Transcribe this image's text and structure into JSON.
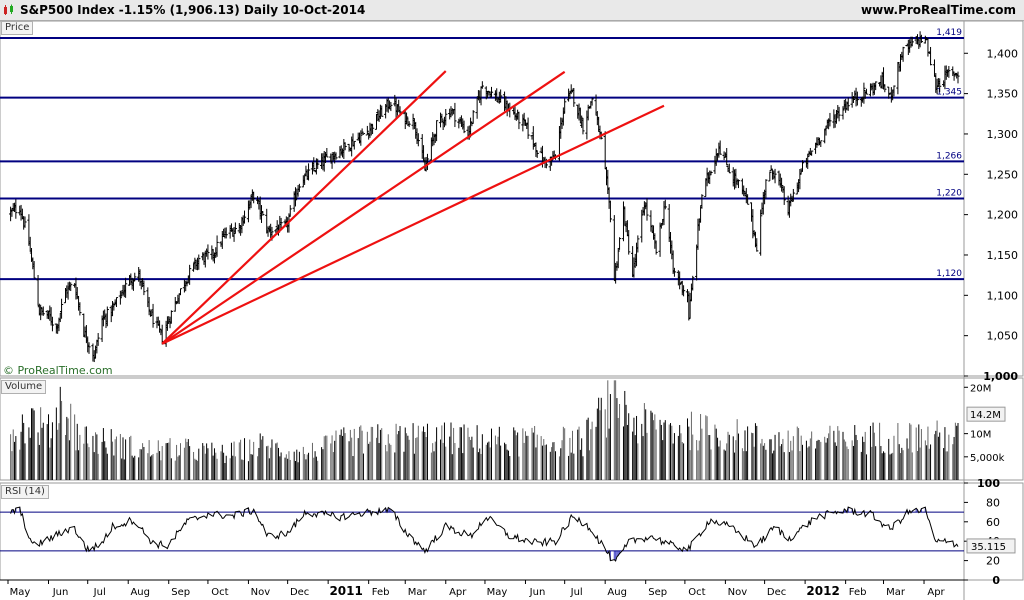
{
  "header": {
    "title": "S&P500 Index   -1.15% (1,906.13)   Daily   10-Oct-2014",
    "site": "www.ProRealTime.com",
    "icon": "candlestick-chart-icon"
  },
  "copyright": "© ProRealTime.com",
  "colors": {
    "grid_line": "#000080",
    "trend_line": "#ee1111",
    "rsi_zone": "#5a5acc",
    "header_bg": "#e9e9e9"
  },
  "chart_data": [
    {
      "type": "candlestick",
      "panel": "Price",
      "title": "S&P500 Index",
      "ylim": [
        1000,
        1440
      ],
      "yticks": [
        {
          "v": 1000,
          "label": "1,000"
        },
        {
          "v": 1050,
          "label": "1,050"
        },
        {
          "v": 1100,
          "label": "1,100"
        },
        {
          "v": 1150,
          "label": "1,150"
        },
        {
          "v": 1200,
          "label": "1,200"
        },
        {
          "v": 1250,
          "label": "1,250"
        },
        {
          "v": 1300,
          "label": "1,300"
        },
        {
          "v": 1350,
          "label": "1,350"
        },
        {
          "v": 1400,
          "label": "1,400"
        }
      ],
      "horizontal_levels": [
        {
          "v": 1419,
          "label": "1,419"
        },
        {
          "v": 1345,
          "label": "1,345"
        },
        {
          "v": 1266,
          "label": "1,266"
        },
        {
          "v": 1220,
          "label": "1,220"
        },
        {
          "v": 1120,
          "label": "1,120"
        }
      ],
      "trend_lines": [
        {
          "from": [
            "2010-08-27",
            1040
          ],
          "to": [
            "2011-04-01",
            1378
          ]
        },
        {
          "from": [
            "2010-08-27",
            1040
          ],
          "to": [
            "2011-07-01",
            1377
          ]
        },
        {
          "from": [
            "2010-08-27",
            1040
          ],
          "to": [
            "2011-09-15",
            1335
          ]
        }
      ],
      "close_path": [
        [
          "2010-05-03",
          1202
        ],
        [
          "2010-05-10",
          1210
        ],
        [
          "2010-05-17",
          1165
        ],
        [
          "2010-05-25",
          1080
        ],
        [
          "2010-06-01",
          1075
        ],
        [
          "2010-06-07",
          1060
        ],
        [
          "2010-06-14",
          1105
        ],
        [
          "2010-06-21",
          1115
        ],
        [
          "2010-06-28",
          1055
        ],
        [
          "2010-07-06",
          1025
        ],
        [
          "2010-07-12",
          1070
        ],
        [
          "2010-07-19",
          1080
        ],
        [
          "2010-07-26",
          1100
        ],
        [
          "2010-08-02",
          1120
        ],
        [
          "2010-08-09",
          1125
        ],
        [
          "2010-08-16",
          1085
        ],
        [
          "2010-08-23",
          1060
        ],
        [
          "2010-08-27",
          1048
        ],
        [
          "2010-09-07",
          1095
        ],
        [
          "2010-09-14",
          1120
        ],
        [
          "2010-09-24",
          1145
        ],
        [
          "2010-10-04",
          1150
        ],
        [
          "2010-10-14",
          1175
        ],
        [
          "2010-10-25",
          1185
        ],
        [
          "2010-11-05",
          1225
        ],
        [
          "2010-11-16",
          1180
        ],
        [
          "2010-11-30",
          1185
        ],
        [
          "2010-12-10",
          1240
        ],
        [
          "2010-12-22",
          1258
        ],
        [
          "2011-01-05",
          1275
        ],
        [
          "2011-01-20",
          1290
        ],
        [
          "2011-02-01",
          1305
        ],
        [
          "2011-02-10",
          1325
        ],
        [
          "2011-02-18",
          1340
        ],
        [
          "2011-02-28",
          1320
        ],
        [
          "2011-03-08",
          1315
        ],
        [
          "2011-03-16",
          1256
        ],
        [
          "2011-03-25",
          1310
        ],
        [
          "2011-04-05",
          1330
        ],
        [
          "2011-04-18",
          1300
        ],
        [
          "2011-04-29",
          1360
        ],
        [
          "2011-05-10",
          1345
        ],
        [
          "2011-05-20",
          1330
        ],
        [
          "2011-06-01",
          1310
        ],
        [
          "2011-06-15",
          1265
        ],
        [
          "2011-06-24",
          1270
        ],
        [
          "2011-07-01",
          1340
        ],
        [
          "2011-07-07",
          1350
        ],
        [
          "2011-07-15",
          1310
        ],
        [
          "2011-07-22",
          1345
        ],
        [
          "2011-07-29",
          1290
        ],
        [
          "2011-08-05",
          1200
        ],
        [
          "2011-08-08",
          1120
        ],
        [
          "2011-08-15",
          1205
        ],
        [
          "2011-08-22",
          1125
        ],
        [
          "2011-08-31",
          1215
        ],
        [
          "2011-09-09",
          1155
        ],
        [
          "2011-09-16",
          1215
        ],
        [
          "2011-09-22",
          1130
        ],
        [
          "2011-10-03",
          1100
        ],
        [
          "2011-10-04",
          1075
        ],
        [
          "2011-10-14",
          1225
        ],
        [
          "2011-10-27",
          1285
        ],
        [
          "2011-11-04",
          1255
        ],
        [
          "2011-11-10",
          1240
        ],
        [
          "2011-11-18",
          1215
        ],
        [
          "2011-11-25",
          1160
        ],
        [
          "2011-12-02",
          1245
        ],
        [
          "2011-12-09",
          1255
        ],
        [
          "2011-12-19",
          1205
        ],
        [
          "2011-12-30",
          1258
        ],
        [
          "2012-01-10",
          1290
        ],
        [
          "2012-01-20",
          1315
        ],
        [
          "2012-02-03",
          1340
        ],
        [
          "2012-02-15",
          1350
        ],
        [
          "2012-02-29",
          1365
        ],
        [
          "2012-03-06",
          1345
        ],
        [
          "2012-03-15",
          1400
        ],
        [
          "2012-03-26",
          1415
        ],
        [
          "2012-04-02",
          1419
        ],
        [
          "2012-04-10",
          1360
        ],
        [
          "2012-04-20",
          1375
        ]
      ],
      "x_axis": {
        "start": "2010-05-01",
        "end": "2012-04-27",
        "ticks": [
          {
            "d": "2010-05-01",
            "label": "May",
            "bold": false
          },
          {
            "d": "2010-06-01",
            "label": "Jun",
            "bold": false
          },
          {
            "d": "2010-07-01",
            "label": "Jul",
            "bold": false
          },
          {
            "d": "2010-08-01",
            "label": "Aug",
            "bold": false
          },
          {
            "d": "2010-09-01",
            "label": "Sep",
            "bold": false
          },
          {
            "d": "2010-10-01",
            "label": "Oct",
            "bold": false
          },
          {
            "d": "2010-11-01",
            "label": "Nov",
            "bold": false
          },
          {
            "d": "2010-12-01",
            "label": "Dec",
            "bold": false
          },
          {
            "d": "2011-01-01",
            "label": "2011",
            "bold": true
          },
          {
            "d": "2011-02-01",
            "label": "Feb",
            "bold": false
          },
          {
            "d": "2011-03-01",
            "label": "Mar",
            "bold": false
          },
          {
            "d": "2011-04-01",
            "label": "Apr",
            "bold": false
          },
          {
            "d": "2011-05-01",
            "label": "May",
            "bold": false
          },
          {
            "d": "2011-06-01",
            "label": "Jun",
            "bold": false
          },
          {
            "d": "2011-07-01",
            "label": "Jul",
            "bold": false
          },
          {
            "d": "2011-08-01",
            "label": "Aug",
            "bold": false
          },
          {
            "d": "2011-09-01",
            "label": "Sep",
            "bold": false
          },
          {
            "d": "2011-10-01",
            "label": "Oct",
            "bold": false
          },
          {
            "d": "2011-11-01",
            "label": "Nov",
            "bold": false
          },
          {
            "d": "2011-12-01",
            "label": "Dec",
            "bold": false
          },
          {
            "d": "2012-01-01",
            "label": "2012",
            "bold": true
          },
          {
            "d": "2012-02-01",
            "label": "Feb",
            "bold": false
          },
          {
            "d": "2012-03-01",
            "label": "Mar",
            "bold": false
          },
          {
            "d": "2012-04-01",
            "label": "Apr",
            "bold": false
          }
        ]
      }
    },
    {
      "type": "bar",
      "panel": "Volume",
      "ylim": [
        0,
        22
      ],
      "yticks": [
        {
          "v": 5,
          "label": "5,000k"
        },
        {
          "v": 10,
          "label": "10M"
        },
        {
          "v": 20,
          "label": "20M"
        }
      ],
      "current_value": 14.2,
      "current_label": "14.2M",
      "profile": [
        [
          "2010-05-01",
          10
        ],
        [
          "2010-05-20",
          14
        ],
        [
          "2010-06-01",
          11
        ],
        [
          "2010-06-10",
          18
        ],
        [
          "2010-06-25",
          10
        ],
        [
          "2010-07-15",
          9
        ],
        [
          "2010-08-10",
          7
        ],
        [
          "2010-08-27",
          7
        ],
        [
          "2010-09-15",
          7
        ],
        [
          "2010-10-15",
          6
        ],
        [
          "2010-11-10",
          8
        ],
        [
          "2010-12-15",
          6
        ],
        [
          "2011-01-15",
          9
        ],
        [
          "2011-03-15",
          10
        ],
        [
          "2011-05-15",
          9
        ],
        [
          "2011-07-15",
          9
        ],
        [
          "2011-08-08",
          19
        ],
        [
          "2011-08-25",
          13
        ],
        [
          "2011-09-20",
          12
        ],
        [
          "2011-10-20",
          11
        ],
        [
          "2011-12-15",
          9
        ],
        [
          "2012-01-15",
          9
        ],
        [
          "2012-03-01",
          10
        ],
        [
          "2012-04-27",
          10
        ]
      ]
    },
    {
      "type": "line",
      "panel": "RSI (14)",
      "ylim": [
        0,
        100
      ],
      "yticks": [
        {
          "v": 0,
          "label": "0"
        },
        {
          "v": 20,
          "label": "20"
        },
        {
          "v": 40,
          "label": "40"
        },
        {
          "v": 60,
          "label": "60"
        },
        {
          "v": 80,
          "label": "80"
        },
        {
          "v": 100,
          "label": "100"
        }
      ],
      "bands": [
        70,
        30
      ],
      "current_value": 35.115,
      "current_label": "35.115",
      "rsi_path": [
        [
          "2010-05-01",
          70
        ],
        [
          "2010-05-10",
          72
        ],
        [
          "2010-05-20",
          35
        ],
        [
          "2010-06-01",
          42
        ],
        [
          "2010-06-10",
          48
        ],
        [
          "2010-06-20",
          55
        ],
        [
          "2010-06-30",
          32
        ],
        [
          "2010-07-10",
          35
        ],
        [
          "2010-07-20",
          55
        ],
        [
          "2010-08-05",
          62
        ],
        [
          "2010-08-20",
          38
        ],
        [
          "2010-08-31",
          35
        ],
        [
          "2010-09-15",
          60
        ],
        [
          "2010-10-01",
          68
        ],
        [
          "2010-10-20",
          66
        ],
        [
          "2010-11-05",
          72
        ],
        [
          "2010-11-16",
          45
        ],
        [
          "2010-12-01",
          48
        ],
        [
          "2010-12-15",
          70
        ],
        [
          "2011-01-10",
          65
        ],
        [
          "2011-02-01",
          70
        ],
        [
          "2011-02-18",
          72
        ],
        [
          "2011-03-01",
          50
        ],
        [
          "2011-03-16",
          30
        ],
        [
          "2011-04-01",
          55
        ],
        [
          "2011-04-20",
          45
        ],
        [
          "2011-05-02",
          65
        ],
        [
          "2011-05-20",
          45
        ],
        [
          "2011-06-10",
          38
        ],
        [
          "2011-06-24",
          40
        ],
        [
          "2011-07-07",
          65
        ],
        [
          "2011-07-20",
          55
        ],
        [
          "2011-08-02",
          30
        ],
        [
          "2011-08-08",
          17
        ],
        [
          "2011-08-20",
          40
        ],
        [
          "2011-09-05",
          45
        ],
        [
          "2011-09-22",
          35
        ],
        [
          "2011-10-04",
          32
        ],
        [
          "2011-10-20",
          62
        ],
        [
          "2011-11-04",
          55
        ],
        [
          "2011-11-25",
          35
        ],
        [
          "2011-12-09",
          55
        ],
        [
          "2011-12-19",
          42
        ],
        [
          "2012-01-10",
          65
        ],
        [
          "2012-02-01",
          72
        ],
        [
          "2012-02-20",
          68
        ],
        [
          "2012-03-06",
          52
        ],
        [
          "2012-03-20",
          70
        ],
        [
          "2012-04-02",
          72
        ],
        [
          "2012-04-10",
          38
        ],
        [
          "2012-04-20",
          42
        ],
        [
          "2012-04-27",
          35
        ]
      ]
    }
  ],
  "panels": {
    "price_label": "Price",
    "volume_label": "Volume",
    "rsi_label": "RSI (14)"
  }
}
